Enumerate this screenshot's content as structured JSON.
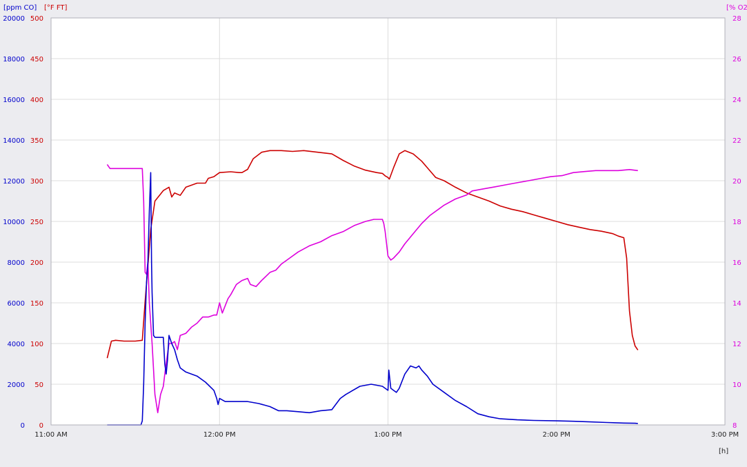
{
  "chart_data": {
    "type": "line",
    "x_axis": {
      "label": "[h]",
      "range_minutes": [
        660,
        900
      ],
      "ticks": [
        {
          "value": 660,
          "label": "11:00 AM"
        },
        {
          "value": 720,
          "label": "12:00 PM"
        },
        {
          "value": 780,
          "label": "1:00 PM"
        },
        {
          "value": 840,
          "label": "2:00 PM"
        },
        {
          "value": 900,
          "label": "3:00 PM"
        }
      ]
    },
    "y_axes": {
      "co": {
        "label": "[ppm CO]",
        "color": "#0000cc",
        "range": [
          0,
          20000
        ],
        "ticks": [
          0,
          2000,
          4000,
          6000,
          8000,
          10000,
          12000,
          14000,
          16000,
          18000,
          20000
        ]
      },
      "temp": {
        "label": "[°F FT]",
        "color": "#cc0000",
        "range": [
          0,
          500
        ],
        "ticks": [
          0,
          50,
          100,
          150,
          200,
          250,
          300,
          350,
          400,
          450,
          500
        ]
      },
      "o2": {
        "label": "[% O2",
        "color": "#dd00dd",
        "range": [
          8,
          28
        ],
        "ticks": [
          8,
          10,
          12,
          14,
          16,
          18,
          20,
          22,
          24,
          26,
          28
        ]
      }
    },
    "grid": true,
    "series": [
      {
        "axis": "temp",
        "color": "#cc0000",
        "points": [
          [
            680,
            82
          ],
          [
            681.5,
            103
          ],
          [
            683,
            104
          ],
          [
            686,
            103
          ],
          [
            690,
            103
          ],
          [
            692.5,
            104
          ],
          [
            693.5,
            152
          ],
          [
            694.5,
            195
          ],
          [
            695.5,
            240
          ],
          [
            697,
            275
          ],
          [
            700,
            288
          ],
          [
            702,
            292
          ],
          [
            703,
            280
          ],
          [
            704,
            285
          ],
          [
            706,
            282
          ],
          [
            708,
            292
          ],
          [
            712,
            297
          ],
          [
            715,
            297
          ],
          [
            716,
            303
          ],
          [
            718,
            305
          ],
          [
            720,
            310
          ],
          [
            724,
            311
          ],
          [
            727,
            310
          ],
          [
            728,
            310
          ],
          [
            730,
            314
          ],
          [
            732,
            327
          ],
          [
            735,
            335
          ],
          [
            738,
            337
          ],
          [
            742,
            337
          ],
          [
            746,
            336
          ],
          [
            750,
            337
          ],
          [
            755,
            335
          ],
          [
            760,
            333
          ],
          [
            764,
            325
          ],
          [
            768,
            318
          ],
          [
            772,
            313
          ],
          [
            776,
            310
          ],
          [
            778,
            309
          ],
          [
            779,
            306
          ],
          [
            780,
            304
          ],
          [
            780.5,
            302
          ],
          [
            782,
            316
          ],
          [
            784,
            333
          ],
          [
            786,
            337
          ],
          [
            789,
            333
          ],
          [
            792,
            324
          ],
          [
            794,
            316
          ],
          [
            797,
            304
          ],
          [
            800,
            300
          ],
          [
            804,
            292
          ],
          [
            808,
            285
          ],
          [
            812,
            280
          ],
          [
            816,
            275
          ],
          [
            820,
            269
          ],
          [
            824,
            265
          ],
          [
            828,
            262
          ],
          [
            832,
            258
          ],
          [
            836,
            254
          ],
          [
            840,
            250
          ],
          [
            844,
            246
          ],
          [
            848,
            243
          ],
          [
            852,
            240
          ],
          [
            856,
            238
          ],
          [
            860,
            235
          ],
          [
            862,
            232
          ],
          [
            864,
            230
          ],
          [
            865,
            205
          ],
          [
            866,
            140
          ],
          [
            867,
            110
          ],
          [
            868,
            97
          ],
          [
            869,
            92
          ]
        ]
      },
      {
        "axis": "o2",
        "color": "#dd00dd",
        "points": [
          [
            680,
            20.8
          ],
          [
            681,
            20.6
          ],
          [
            688,
            20.6
          ],
          [
            692,
            20.6
          ],
          [
            692.5,
            20.6
          ],
          [
            693,
            19
          ],
          [
            693.5,
            15.5
          ],
          [
            694,
            15.4
          ],
          [
            694.5,
            16
          ],
          [
            695,
            14
          ],
          [
            696,
            12
          ],
          [
            697,
            9.5
          ],
          [
            698,
            8.6
          ],
          [
            699,
            9.5
          ],
          [
            700,
            9.9
          ],
          [
            700.5,
            10.5
          ],
          [
            701,
            11
          ],
          [
            702,
            12
          ],
          [
            703,
            12
          ],
          [
            704,
            12.1
          ],
          [
            705,
            11.7
          ],
          [
            706,
            12.4
          ],
          [
            708,
            12.5
          ],
          [
            710,
            12.8
          ],
          [
            712,
            13
          ],
          [
            714,
            13.3
          ],
          [
            716,
            13.3
          ],
          [
            718,
            13.4
          ],
          [
            719,
            13.4
          ],
          [
            720,
            14
          ],
          [
            721,
            13.5
          ],
          [
            723,
            14.2
          ],
          [
            724,
            14.4
          ],
          [
            726,
            14.9
          ],
          [
            728,
            15.1
          ],
          [
            730,
            15.2
          ],
          [
            731,
            14.9
          ],
          [
            733,
            14.8
          ],
          [
            735,
            15.1
          ],
          [
            738,
            15.5
          ],
          [
            740,
            15.6
          ],
          [
            742,
            15.9
          ],
          [
            745,
            16.2
          ],
          [
            748,
            16.5
          ],
          [
            752,
            16.8
          ],
          [
            756,
            17
          ],
          [
            760,
            17.3
          ],
          [
            764,
            17.5
          ],
          [
            768,
            17.8
          ],
          [
            772,
            18
          ],
          [
            775,
            18.1
          ],
          [
            777,
            18.1
          ],
          [
            778,
            18.1
          ],
          [
            778.5,
            17.9
          ],
          [
            779,
            17.5
          ],
          [
            780,
            16.3
          ],
          [
            781,
            16.1
          ],
          [
            782,
            16.2
          ],
          [
            784,
            16.5
          ],
          [
            786,
            16.9
          ],
          [
            789,
            17.4
          ],
          [
            792,
            17.9
          ],
          [
            795,
            18.3
          ],
          [
            798,
            18.6
          ],
          [
            800,
            18.8
          ],
          [
            804,
            19.1
          ],
          [
            808,
            19.3
          ],
          [
            810,
            19.5
          ],
          [
            814,
            19.6
          ],
          [
            818,
            19.7
          ],
          [
            822,
            19.8
          ],
          [
            826,
            19.9
          ],
          [
            830,
            20
          ],
          [
            834,
            20.1
          ],
          [
            838,
            20.2
          ],
          [
            842,
            20.25
          ],
          [
            846,
            20.4
          ],
          [
            850,
            20.45
          ],
          [
            854,
            20.5
          ],
          [
            858,
            20.5
          ],
          [
            862,
            20.5
          ],
          [
            866,
            20.55
          ],
          [
            869,
            20.5
          ]
        ]
      },
      {
        "axis": "co",
        "color": "#0000cc",
        "points": [
          [
            680,
            0
          ],
          [
            689,
            0
          ],
          [
            692,
            0
          ],
          [
            692.5,
            200
          ],
          [
            693,
            2000
          ],
          [
            693.5,
            5000
          ],
          [
            694,
            7000
          ],
          [
            694.5,
            8000
          ],
          [
            695,
            10500
          ],
          [
            695.5,
            12400
          ],
          [
            695.8,
            8000
          ],
          [
            696,
            6500
          ],
          [
            696.5,
            4400
          ],
          [
            697,
            4300
          ],
          [
            699,
            4300
          ],
          [
            700,
            4300
          ],
          [
            700.5,
            3000
          ],
          [
            701,
            2500
          ],
          [
            701.5,
            3200
          ],
          [
            702,
            4400
          ],
          [
            703,
            4000
          ],
          [
            704,
            3700
          ],
          [
            705,
            3200
          ],
          [
            706,
            2800
          ],
          [
            708,
            2600
          ],
          [
            712,
            2400
          ],
          [
            715,
            2100
          ],
          [
            718,
            1700
          ],
          [
            719,
            1300
          ],
          [
            719.5,
            1000
          ],
          [
            720,
            1300
          ],
          [
            722,
            1150
          ],
          [
            726,
            1150
          ],
          [
            730,
            1150
          ],
          [
            734,
            1050
          ],
          [
            738,
            900
          ],
          [
            741,
            700
          ],
          [
            744,
            700
          ],
          [
            748,
            650
          ],
          [
            752,
            600
          ],
          [
            756,
            700
          ],
          [
            760,
            750
          ],
          [
            763,
            1300
          ],
          [
            765,
            1500
          ],
          [
            770,
            1900
          ],
          [
            774,
            2000
          ],
          [
            778,
            1900
          ],
          [
            780,
            1700
          ],
          [
            780.3,
            2700
          ],
          [
            781,
            1800
          ],
          [
            782,
            1700
          ],
          [
            783,
            1600
          ],
          [
            784,
            1800
          ],
          [
            786,
            2500
          ],
          [
            788,
            2900
          ],
          [
            790,
            2800
          ],
          [
            791,
            2900
          ],
          [
            792,
            2700
          ],
          [
            794,
            2400
          ],
          [
            796,
            2000
          ],
          [
            800,
            1600
          ],
          [
            804,
            1200
          ],
          [
            808,
            900
          ],
          [
            812,
            550
          ],
          [
            816,
            400
          ],
          [
            820,
            300
          ],
          [
            826,
            250
          ],
          [
            832,
            220
          ],
          [
            840,
            200
          ],
          [
            846,
            180
          ],
          [
            852,
            150
          ],
          [
            858,
            120
          ],
          [
            864,
            90
          ],
          [
            868,
            80
          ],
          [
            869,
            70
          ]
        ]
      }
    ]
  }
}
